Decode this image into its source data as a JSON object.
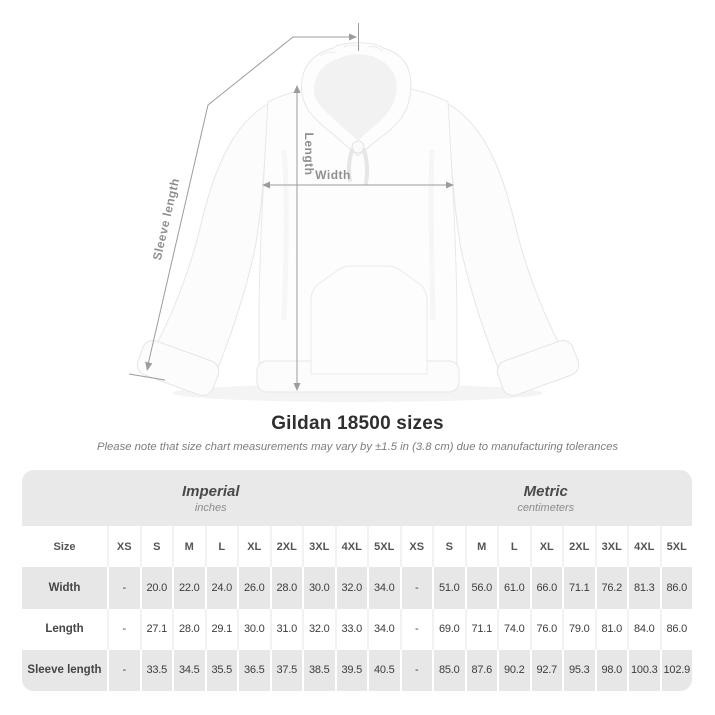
{
  "title": "Gildan 18500 sizes",
  "subtitle": "Please note that size chart measurements may vary by ±1.5 in (3.8 cm) due to manufacturing tolerances",
  "diagram": {
    "sleeve_length_label": "Sleeve length",
    "length_label": "Length",
    "width_label": "Width"
  },
  "table": {
    "size_header": "Size",
    "groups": [
      {
        "label": "Imperial",
        "unit": "inches"
      },
      {
        "label": "Metric",
        "unit": "centimeters"
      }
    ],
    "sizes": [
      "XS",
      "S",
      "M",
      "L",
      "XL",
      "2XL",
      "3XL",
      "4XL",
      "5XL"
    ],
    "rows": [
      {
        "label": "Width",
        "imperial": [
          "-",
          "20.0",
          "22.0",
          "24.0",
          "26.0",
          "28.0",
          "30.0",
          "32.0",
          "34.0"
        ],
        "metric": [
          "-",
          "51.0",
          "56.0",
          "61.0",
          "66.0",
          "71.1",
          "76.2",
          "81.3",
          "86.0"
        ]
      },
      {
        "label": "Length",
        "imperial": [
          "-",
          "27.1",
          "28.0",
          "29.1",
          "30.0",
          "31.0",
          "32.0",
          "33.0",
          "34.0"
        ],
        "metric": [
          "-",
          "69.0",
          "71.1",
          "74.0",
          "76.0",
          "79.0",
          "81.0",
          "84.0",
          "86.0"
        ]
      },
      {
        "label": "Sleeve length",
        "imperial": [
          "-",
          "33.5",
          "34.5",
          "35.5",
          "36.5",
          "37.5",
          "38.5",
          "39.5",
          "40.5"
        ],
        "metric": [
          "-",
          "85.0",
          "87.6",
          "90.2",
          "92.7",
          "95.3",
          "98.0",
          "100.3",
          "102.9"
        ]
      }
    ]
  },
  "colors": {
    "measure_line": "#9c9c9c",
    "measure_label": "#8f8f8f",
    "table_bg": "#e9e9e9",
    "row_gray": "#e7e7e7",
    "row_white": "#ffffff",
    "title": "#2f2f2f",
    "subtitle": "#7d7d7d"
  }
}
